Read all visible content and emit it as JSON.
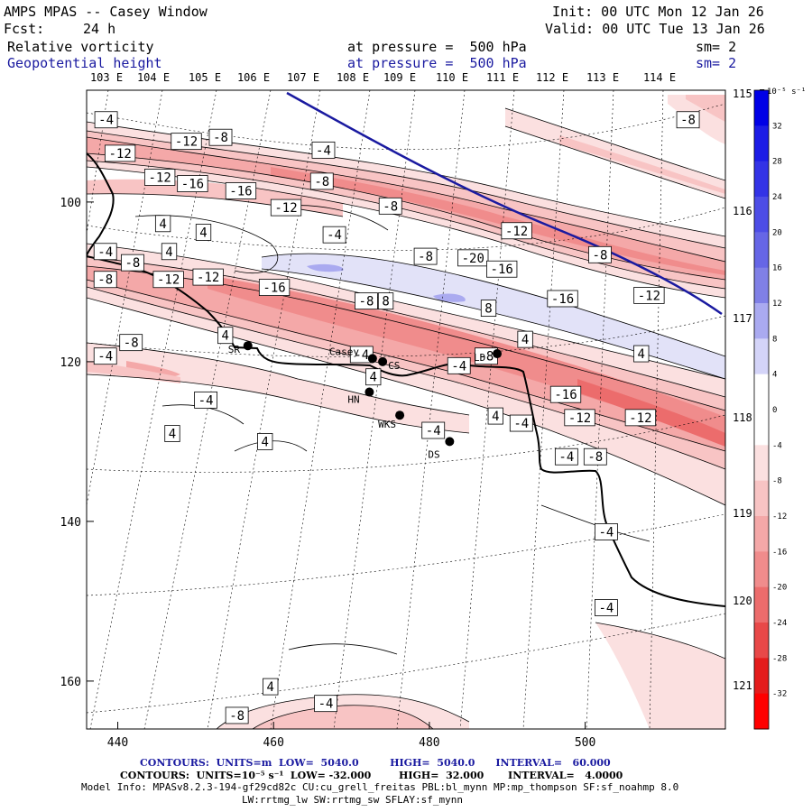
{
  "header": {
    "title": "AMPS MPAS -- Casey Window",
    "init": "Init: 00 UTC Mon 12 Jan 26",
    "fcst_label": "Fcst:",
    "fcst_value": "24 h",
    "valid": "Valid: 00 UTC Tue 13 Jan 26",
    "field1": "Relative vorticity",
    "field1_level": "at pressure =  500 hPa",
    "field1_sm": "sm= 2",
    "field2": "Geopotential height",
    "field2_level": "at pressure =  500 hPa",
    "field2_sm": "sm= 2"
  },
  "chart_data": {
    "type": "map-contour",
    "title": "AMPS MPAS -- Casey Window",
    "fields": [
      {
        "name": "Relative vorticity",
        "units": "10^-5 s^-1",
        "level_hPa": 500,
        "smoothing": 2,
        "low": -32.0,
        "high": 32.0,
        "interval": 4.0
      },
      {
        "name": "Geopotential height",
        "units": "m",
        "level_hPa": 500,
        "smoothing": 2,
        "low": 5040.0,
        "high": 5040.0,
        "interval": 60.0
      }
    ],
    "x_axis": {
      "label": "",
      "ticks": [
        440,
        460,
        480,
        500
      ],
      "range": [
        436,
        518
      ]
    },
    "y_axis": {
      "label": "",
      "ticks": [
        100,
        120,
        140,
        160
      ],
      "range": [
        86,
        166
      ]
    },
    "top_lon_labels": [
      "103 E",
      "104 E",
      "105 E",
      "106 E",
      "107 E",
      "108 E",
      "109 E",
      "110 E",
      "111 E",
      "112 E",
      "113 E",
      "114 E"
    ],
    "right_lon_labels": [
      "115 E",
      "116 E",
      "117 E",
      "118 E",
      "119 E",
      "120 E",
      "121 E"
    ],
    "colorbar": {
      "units": "10^-5 s^-1",
      "ticks": [
        32,
        28,
        24,
        20,
        16,
        12,
        8,
        4,
        0,
        -4,
        -8,
        -12,
        -16,
        -20,
        -24,
        -28,
        -32
      ],
      "colors": [
        "#0000e6",
        "#1c1ce6",
        "#3333e6",
        "#4d4de6",
        "#6666e6",
        "#8080e6",
        "#aaaaf0",
        "#d4d4f8",
        "#ffffff",
        "#ffffff",
        "#fbe0e0",
        "#f8c4c4",
        "#f4a8a8",
        "#f08c8c",
        "#ec6c6c",
        "#e84848",
        "#e41c1c",
        "#ff0000"
      ]
    },
    "stations": [
      {
        "name": "SR",
        "x": 456.7,
        "y": 118.0
      },
      {
        "name": "Casey",
        "x": 472.7,
        "y": 119.6
      },
      {
        "name": "CS",
        "x": 474.0,
        "y": 120.0
      },
      {
        "name": "LD",
        "x": 488.7,
        "y": 119.0
      },
      {
        "name": "HN",
        "x": 472.3,
        "y": 123.8
      },
      {
        "name": "WKS",
        "x": 476.2,
        "y": 126.7
      },
      {
        "name": "DS",
        "x": 482.6,
        "y": 130.0
      }
    ],
    "contour_labels": [
      {
        "text": "-4",
        "x": 438.5,
        "y": 89.7
      },
      {
        "text": "-12",
        "x": 448.8,
        "y": 92.4
      },
      {
        "text": "-8",
        "x": 453.2,
        "y": 91.9
      },
      {
        "text": "-12",
        "x": 440.3,
        "y": 93.9
      },
      {
        "text": "-12",
        "x": 445.4,
        "y": 96.9
      },
      {
        "text": "-16",
        "x": 449.6,
        "y": 97.7
      },
      {
        "text": "-16",
        "x": 455.8,
        "y": 98.6
      },
      {
        "text": "-12",
        "x": 461.6,
        "y": 100.7
      },
      {
        "text": "-4",
        "x": 466.4,
        "y": 93.5
      },
      {
        "text": "-8",
        "x": 466.2,
        "y": 97.4
      },
      {
        "text": "-8",
        "x": 475.0,
        "y": 100.5
      },
      {
        "text": "-12",
        "x": 491.2,
        "y": 103.6
      },
      {
        "text": "-8",
        "x": 513.2,
        "y": 89.7
      },
      {
        "text": "4",
        "x": 445.8,
        "y": 102.7
      },
      {
        "text": "4",
        "x": 451.0,
        "y": 103.8
      },
      {
        "text": "4",
        "x": 446.6,
        "y": 106.2
      },
      {
        "text": "-4",
        "x": 438.4,
        "y": 106.2
      },
      {
        "text": "-4",
        "x": 467.8,
        "y": 104.1
      },
      {
        "text": "-8",
        "x": 441.9,
        "y": 107.6
      },
      {
        "text": "-8",
        "x": 438.4,
        "y": 109.7
      },
      {
        "text": "-12",
        "x": 446.5,
        "y": 109.7
      },
      {
        "text": "-12",
        "x": 451.6,
        "y": 109.4
      },
      {
        "text": "-16",
        "x": 460.1,
        "y": 110.7
      },
      {
        "text": "-8",
        "x": 479.5,
        "y": 106.8
      },
      {
        "text": "-20",
        "x": 485.6,
        "y": 107.0
      },
      {
        "text": "-16",
        "x": 489.3,
        "y": 108.4
      },
      {
        "text": "-8",
        "x": 501.9,
        "y": 106.6
      },
      {
        "text": "-8",
        "x": 471.9,
        "y": 112.4
      },
      {
        "text": "8",
        "x": 474.4,
        "y": 112.4
      },
      {
        "text": "8",
        "x": 487.6,
        "y": 113.3
      },
      {
        "text": "-16",
        "x": 497.1,
        "y": 112.1
      },
      {
        "text": "-12",
        "x": 508.2,
        "y": 111.7
      },
      {
        "text": "4",
        "x": 453.8,
        "y": 116.7
      },
      {
        "text": "4",
        "x": 492.3,
        "y": 117.2
      },
      {
        "text": "4",
        "x": 507.2,
        "y": 119.0
      },
      {
        "text": "-8",
        "x": 441.7,
        "y": 117.6
      },
      {
        "text": "-4",
        "x": 438.4,
        "y": 119.3
      },
      {
        "text": "-4",
        "x": 471.3,
        "y": 119.1
      },
      {
        "text": "4",
        "x": 472.8,
        "y": 121.9
      },
      {
        "text": "-8",
        "x": 487.3,
        "y": 119.3
      },
      {
        "text": "-4",
        "x": 483.8,
        "y": 120.5
      },
      {
        "text": "-16",
        "x": 497.5,
        "y": 124.1
      },
      {
        "text": "-4",
        "x": 451.3,
        "y": 124.8
      },
      {
        "text": "-12",
        "x": 499.3,
        "y": 127.0
      },
      {
        "text": "-12",
        "x": 507.1,
        "y": 127.0
      },
      {
        "text": "4",
        "x": 488.5,
        "y": 126.8
      },
      {
        "text": "-4",
        "x": 491.8,
        "y": 127.7
      },
      {
        "text": "-4",
        "x": 480.5,
        "y": 128.6
      },
      {
        "text": "4",
        "x": 447.0,
        "y": 129.0
      },
      {
        "text": "4",
        "x": 458.9,
        "y": 130.0
      },
      {
        "text": "-4",
        "x": 497.6,
        "y": 131.9
      },
      {
        "text": "-8",
        "x": 501.3,
        "y": 131.9
      },
      {
        "text": "-4",
        "x": 502.7,
        "y": 141.3
      },
      {
        "text": "-4",
        "x": 502.7,
        "y": 150.8
      },
      {
        "text": "4",
        "x": 459.6,
        "y": 160.7
      },
      {
        "text": "-4",
        "x": 466.7,
        "y": 162.8
      },
      {
        "text": "-8",
        "x": 455.3,
        "y": 164.3
      }
    ]
  },
  "footer": {
    "line1_contours": "CONTOURS:  UNITS=m  LOW=  5040.0         HIGH=  5040.0      INTERVAL=   60.000",
    "line2_contours": "CONTOURS:  UNITS=10⁻⁵ s⁻¹  LOW= -32.000        HIGH=  32.000       INTERVAL=   4.0000",
    "model_info": "Model Info: MPASv8.2.3-194-gf29cd82c CU:cu_grell_freitas PBL:bl_mynn MP:mp_thompson SF:sf_noahmp 8.0",
    "model_info2": "LW:rrtmg_lw SW:rrtmg_sw SFLAY:sf_mynn"
  },
  "colorbar_units_label": "10⁻⁵ s⁻¹"
}
